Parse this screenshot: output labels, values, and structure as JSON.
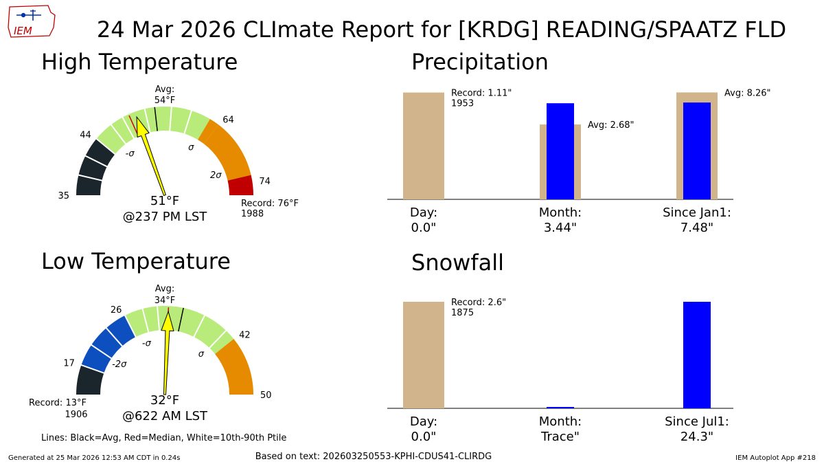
{
  "title": "24 Mar 2026 CLImate Report for [KRDG] READING/SPAATZ FLD",
  "logo_text": "IEM",
  "footer": {
    "generated": "Generated at 25 Mar 2026 12:53 AM CDT in 0.24s",
    "based_on": "Based on text: 202603250553-KPHI-CDUS41-CLIRDG",
    "app": "IEM Autoplot App #218"
  },
  "legend_note": "Lines: Black=Avg, Red=Median, White=10th-90th Ptile",
  "colors": {
    "dark": "#1b262c",
    "blue": "#0d4fbf",
    "light_green": "#b8eb79",
    "orange": "#e68a00",
    "red": "#c00000",
    "needle": "#ffff00",
    "tan": "#d1b48c",
    "obs_blue": "#0000ff",
    "median_line": "#d40000"
  },
  "high_temp": {
    "title": "High Temperature",
    "value_label": "51°F",
    "time_label": "@237 PM LST",
    "avg_label": "Avg:",
    "avg_value_label": "54°F",
    "record_label": "Record: 76°F",
    "record_year": "1988",
    "chart_data": {
      "type": "gauge",
      "min": 35,
      "max": 76,
      "observed": 51,
      "average": 54,
      "median": 50,
      "tick_labels": [
        {
          "value": 35,
          "label": "35"
        },
        {
          "value": 44,
          "label": "44"
        },
        {
          "value": 64,
          "label": "64"
        },
        {
          "value": 74,
          "label": "74"
        }
      ],
      "sigma_labels": [
        {
          "value": 46.5,
          "label": "-σ"
        },
        {
          "value": 62,
          "label": "σ"
        },
        {
          "value": 71,
          "label": "2σ"
        }
      ],
      "bands": [
        {
          "from": 35,
          "to": 44,
          "color": "dark"
        },
        {
          "from": 44,
          "to": 62.5,
          "color": "light_green"
        },
        {
          "from": 62.5,
          "to": 64,
          "color": "orange"
        },
        {
          "from": 64,
          "to": 73,
          "color": "orange"
        },
        {
          "from": 73,
          "to": 76,
          "color": "red"
        }
      ],
      "white_lines": [
        38,
        41,
        44,
        47,
        49,
        52.5,
        56.5,
        59.5
      ]
    }
  },
  "low_temp": {
    "title": "Low Temperature",
    "value_label": "32°F",
    "time_label": "@622 AM LST",
    "avg_label": "Avg:",
    "avg_value_label": "34°F",
    "record_label": "Record: 13°F",
    "record_year": "1906",
    "chart_data": {
      "type": "gauge",
      "min": 13,
      "max": 50,
      "observed": 32,
      "average": 34,
      "median": 32,
      "tick_labels": [
        {
          "value": 17,
          "label": "17"
        },
        {
          "value": 26,
          "label": "26"
        },
        {
          "value": 42,
          "label": "42"
        },
        {
          "value": 50,
          "label": "50"
        }
      ],
      "sigma_labels": [
        {
          "value": 20,
          "label": "-2σ"
        },
        {
          "value": 27.5,
          "label": "-σ"
        },
        {
          "value": 40,
          "label": "σ"
        }
      ],
      "bands": [
        {
          "from": 13,
          "to": 17,
          "color": "dark"
        },
        {
          "from": 17,
          "to": 26,
          "color": "blue"
        },
        {
          "from": 26,
          "to": 40.5,
          "color": "light_green"
        },
        {
          "from": 40.5,
          "to": 42,
          "color": "light_green"
        },
        {
          "from": 42,
          "to": 50,
          "color": "orange"
        }
      ],
      "white_lines": [
        17,
        20,
        23,
        26,
        28.5,
        30.5,
        37,
        40.5
      ]
    }
  },
  "precipitation": {
    "title": "Precipitation",
    "chart_data": {
      "type": "bar",
      "ymax": 1.2,
      "groups": [
        {
          "label": "Day:",
          "value_label": "0.0\"",
          "reference": 1.11,
          "observed": 0.0,
          "scale": 1.0,
          "ref_label": "Record: 1.11\"",
          "ref_label2": "1953"
        },
        {
          "label": "Month:",
          "value_label": "3.44\"",
          "reference": 2.68,
          "observed": 3.44,
          "scale": 0.2903,
          "ref_label": "Avg: 2.68\"",
          "ref_label2": ""
        },
        {
          "label": "Since Jan1:",
          "value_label": "7.48\"",
          "reference": 8.26,
          "observed": 7.48,
          "scale": 0.1345,
          "ref_label": "Avg: 8.26\"",
          "ref_label2": ""
        }
      ]
    }
  },
  "snowfall": {
    "title": "Snowfall",
    "chart_data": {
      "type": "bar",
      "ymax": 2.6,
      "groups": [
        {
          "label": "Day:",
          "value_label": "0.0\"",
          "reference": 2.6,
          "observed": 0.0,
          "scale": 1.0,
          "ref_label": "Record: 2.6\"",
          "ref_label2": "1875"
        },
        {
          "label": "Month:",
          "value_label": "Trace\"",
          "reference": 0,
          "observed": 0.0001,
          "scale": 1.0,
          "ref_label": "",
          "ref_label2": ""
        },
        {
          "label": "Since Jul1:",
          "value_label": "24.3\"",
          "reference": 0,
          "observed": 24.3,
          "scale": 0.107,
          "ref_label": "",
          "ref_label2": ""
        }
      ]
    }
  }
}
